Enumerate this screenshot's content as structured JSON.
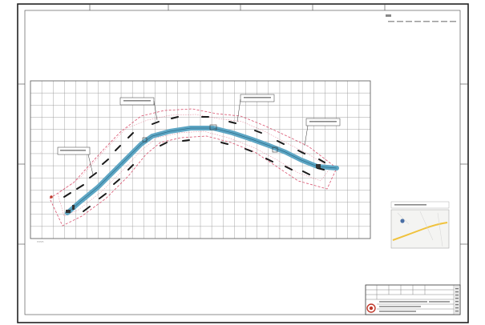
{
  "drawing": {
    "grid": {
      "columns": 30,
      "rows": 13
    }
  },
  "colors": {
    "frame": "#222222",
    "grid": "#9a9a9a",
    "river": "#5ea6c4",
    "boundary": "#d9536f",
    "hatch": "#1a1a1a",
    "map_road": "#f0c23c",
    "seal": "#c0392b"
  }
}
